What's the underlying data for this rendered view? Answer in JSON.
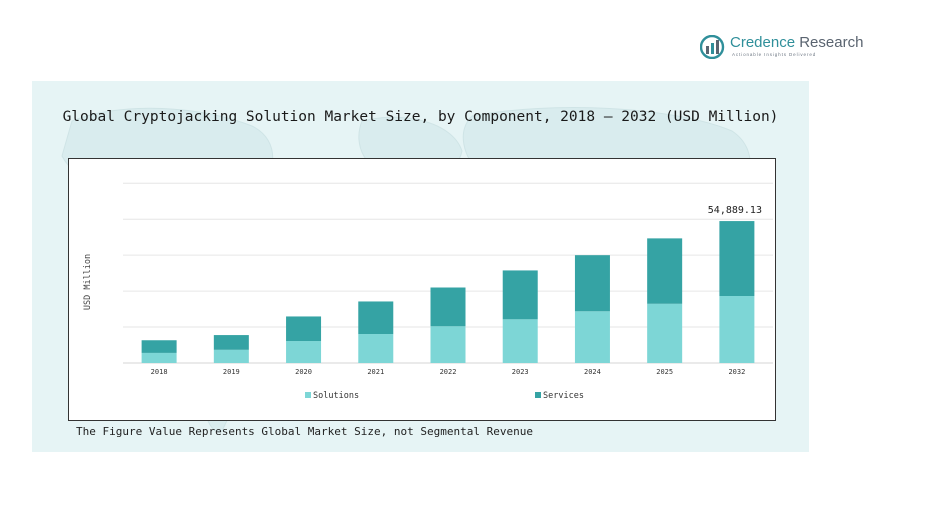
{
  "brand": {
    "name_part1": "Credence",
    "name_part2": "Research",
    "tagline": "Actionable Insights Delivered",
    "colors": {
      "primary": "#2f8f9a",
      "secondary": "#5a6470"
    }
  },
  "footnote": "The Figure Value Represents Global Market Size, not Segmental Revenue",
  "colors": {
    "solutions": "#7dd6d6",
    "services": "#35a3a4",
    "panel": "#e6f4f5",
    "gridline": "#e6e6e6"
  },
  "chart_data": {
    "type": "bar",
    "stacked": true,
    "title": "Global Cryptojacking Solution Market Size, by Component, 2018 – 2032 (USD Million)",
    "ylabel": "USD Million",
    "xlabel": "",
    "categories": [
      "2018",
      "2019",
      "2020",
      "2021",
      "2022",
      "2023",
      "2024",
      "2025",
      "2032"
    ],
    "series": [
      {
        "name": "Solutions",
        "color": "#7dd6d6",
        "values": [
          3900,
          5100,
          8500,
          11200,
          14200,
          16900,
          20000,
          22900,
          25900
        ]
      },
      {
        "name": "Services",
        "color": "#35a3a4",
        "values": [
          4900,
          5700,
          9500,
          12600,
          15000,
          18900,
          21700,
          25300,
          28989.13
        ]
      }
    ],
    "total_labels": [
      {
        "category": "2032",
        "text": "54,889.13"
      }
    ],
    "ylim": [
      0,
      70000
    ],
    "gridlines": [
      13900,
      27800,
      41700,
      55600,
      69500
    ],
    "grid": true,
    "y_tick_labels_shown": false,
    "legend_position": "bottom"
  }
}
